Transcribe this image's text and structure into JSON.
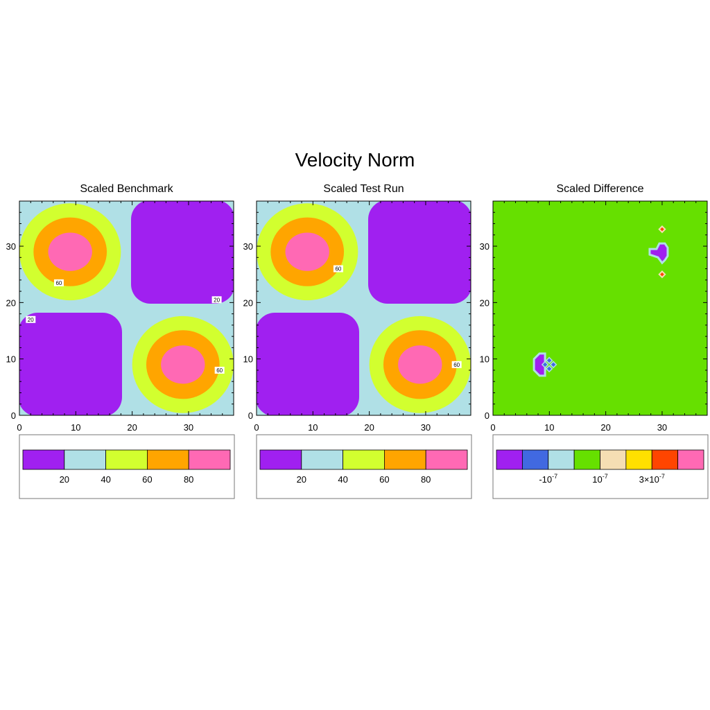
{
  "title": "Velocity Norm",
  "colors": {
    "purple": "#a020f0",
    "lightblue": "#b0e0e6",
    "yellowgreen": "#d2ff2f",
    "orange": "#ffa500",
    "pink": "#ff69b4",
    "royalblue": "#4169e1",
    "green": "#66e000",
    "wheat": "#f5deb3",
    "gold": "#ffe000",
    "orangered": "#ff4500"
  },
  "chart_data": [
    {
      "type": "contour",
      "title": "Scaled Benchmark",
      "xlim": [
        0,
        38
      ],
      "ylim": [
        0,
        38
      ],
      "xticks": [
        0,
        10,
        20,
        30
      ],
      "yticks": [
        0,
        10,
        20,
        30
      ],
      "levels": [
        20,
        40,
        60,
        80
      ],
      "level_colors": [
        "#a020f0",
        "#b0e0e6",
        "#d2ff2f",
        "#ffa500",
        "#ff69b4"
      ],
      "colorbar_labels": [
        "20",
        "40",
        "60",
        "80"
      ],
      "peaks": [
        [
          9,
          29
        ],
        [
          29,
          9
        ]
      ],
      "troughs": [
        [
          29,
          29
        ],
        [
          9,
          9
        ]
      ],
      "contour_labels": [
        "60",
        "20",
        "20",
        "60"
      ]
    },
    {
      "type": "contour",
      "title": "Scaled Test Run",
      "xlim": [
        0,
        38
      ],
      "ylim": [
        0,
        38
      ],
      "xticks": [
        0,
        10,
        20,
        30
      ],
      "yticks": [
        0,
        10,
        20,
        30
      ],
      "levels": [
        20,
        40,
        60,
        80
      ],
      "level_colors": [
        "#a020f0",
        "#b0e0e6",
        "#d2ff2f",
        "#ffa500",
        "#ff69b4"
      ],
      "colorbar_labels": [
        "20",
        "40",
        "60",
        "80"
      ],
      "peaks": [
        [
          9,
          29
        ],
        [
          29,
          9
        ]
      ],
      "troughs": [
        [
          29,
          29
        ],
        [
          9,
          9
        ]
      ],
      "contour_labels": [
        "60",
        "60"
      ]
    },
    {
      "type": "contour",
      "title": "Scaled Difference",
      "xlim": [
        0,
        38
      ],
      "ylim": [
        0,
        38
      ],
      "xticks": [
        0,
        10,
        20,
        30
      ],
      "yticks": [
        0,
        10,
        20,
        30
      ],
      "background_color": "#66e000",
      "level_colors": [
        "#a020f0",
        "#4169e1",
        "#b0e0e6",
        "#66e000",
        "#f5deb3",
        "#ffe000",
        "#ff4500",
        "#ff69b4"
      ],
      "colorbar_labels": [
        {
          "base": "-10",
          "exp": "-7"
        },
        {
          "base": "10",
          "exp": "-7"
        },
        {
          "base": "3×10",
          "exp": "-7"
        }
      ]
    }
  ]
}
